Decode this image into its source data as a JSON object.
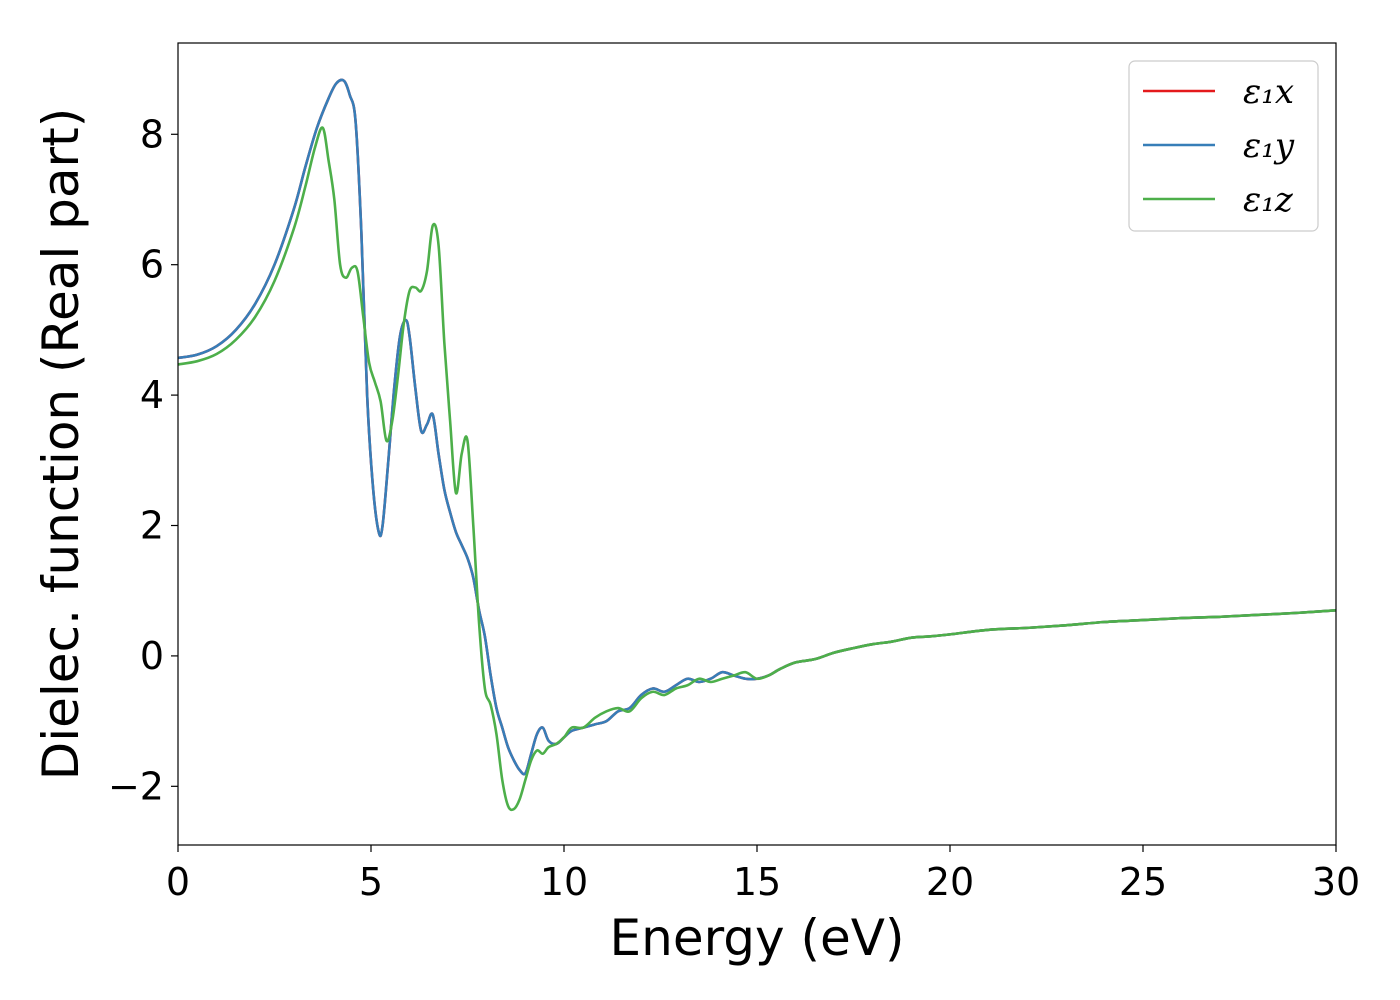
{
  "chart_data": {
    "type": "line",
    "xlabel": "Energy (eV)",
    "ylabel": "Dielec. function (Real part)",
    "xlim": [
      0,
      30
    ],
    "ylim": [
      -2.9,
      9.4
    ],
    "xticks": [
      0,
      5,
      10,
      15,
      20,
      25,
      30
    ],
    "yticks": [
      -2,
      0,
      2,
      4,
      6,
      8
    ],
    "xtick_labels": [
      "0",
      "5",
      "10",
      "15",
      "20",
      "25",
      "30"
    ],
    "ytick_labels": [
      "−2",
      "0",
      "2",
      "4",
      "6",
      "8"
    ],
    "grid": false,
    "legend_position": "top-right",
    "series": [
      {
        "name": "ε₁x",
        "color": "#e41a1c",
        "x": [
          0,
          0.5,
          1,
          1.5,
          2,
          2.5,
          3,
          3.3,
          3.6,
          3.9,
          4.1,
          4.3,
          4.45,
          4.6,
          4.75,
          4.9,
          5.05,
          5.2,
          5.3,
          5.45,
          5.6,
          5.75,
          5.9,
          6.0,
          6.15,
          6.3,
          6.45,
          6.6,
          6.75,
          6.9,
          7.05,
          7.2,
          7.35,
          7.5,
          7.65,
          7.8,
          7.95,
          8.1,
          8.25,
          8.4,
          8.55,
          8.7,
          8.85,
          9.0,
          9.15,
          9.3,
          9.45,
          9.6,
          9.8,
          10.0,
          10.2,
          10.5,
          10.8,
          11.1,
          11.4,
          11.7,
          12.0,
          12.3,
          12.6,
          12.9,
          13.2,
          13.5,
          13.8,
          14.1,
          14.4,
          14.7,
          15.0,
          15.3,
          15.6,
          16.0,
          16.5,
          17.0,
          17.5,
          18.0,
          18.5,
          19.0,
          19.5,
          20.0,
          21.0,
          22.0,
          23.0,
          24.0,
          25.0,
          26.0,
          27.0,
          28.0,
          29.0,
          30.0
        ],
        "y": [
          4.57,
          4.62,
          4.75,
          5.0,
          5.4,
          6.0,
          6.85,
          7.5,
          8.1,
          8.55,
          8.78,
          8.82,
          8.6,
          8.2,
          6.5,
          4.0,
          2.6,
          1.9,
          2.0,
          3.0,
          4.1,
          4.9,
          5.15,
          4.9,
          4.1,
          3.45,
          3.55,
          3.7,
          3.1,
          2.55,
          2.2,
          1.9,
          1.7,
          1.5,
          1.2,
          0.7,
          0.3,
          -0.3,
          -0.8,
          -1.1,
          -1.4,
          -1.6,
          -1.75,
          -1.8,
          -1.5,
          -1.2,
          -1.1,
          -1.3,
          -1.35,
          -1.25,
          -1.15,
          -1.1,
          -1.05,
          -1.0,
          -0.85,
          -0.8,
          -0.6,
          -0.5,
          -0.55,
          -0.45,
          -0.35,
          -0.4,
          -0.35,
          -0.25,
          -0.3,
          -0.35,
          -0.35,
          -0.3,
          -0.2,
          -0.1,
          -0.05,
          0.05,
          0.12,
          0.18,
          0.22,
          0.28,
          0.3,
          0.33,
          0.4,
          0.43,
          0.47,
          0.52,
          0.55,
          0.58,
          0.6,
          0.63,
          0.66,
          0.7
        ]
      },
      {
        "name": "ε₁y",
        "color": "#377eb8",
        "x": [
          0,
          0.5,
          1,
          1.5,
          2,
          2.5,
          3,
          3.3,
          3.6,
          3.9,
          4.1,
          4.3,
          4.45,
          4.6,
          4.75,
          4.9,
          5.05,
          5.2,
          5.3,
          5.45,
          5.6,
          5.75,
          5.9,
          6.0,
          6.15,
          6.3,
          6.45,
          6.6,
          6.75,
          6.9,
          7.05,
          7.2,
          7.35,
          7.5,
          7.65,
          7.8,
          7.95,
          8.1,
          8.25,
          8.4,
          8.55,
          8.7,
          8.85,
          9.0,
          9.15,
          9.3,
          9.45,
          9.6,
          9.8,
          10.0,
          10.2,
          10.5,
          10.8,
          11.1,
          11.4,
          11.7,
          12.0,
          12.3,
          12.6,
          12.9,
          13.2,
          13.5,
          13.8,
          14.1,
          14.4,
          14.7,
          15.0,
          15.3,
          15.6,
          16.0,
          16.5,
          17.0,
          17.5,
          18.0,
          18.5,
          19.0,
          19.5,
          20.0,
          21.0,
          22.0,
          23.0,
          24.0,
          25.0,
          26.0,
          27.0,
          28.0,
          29.0,
          30.0
        ],
        "y": [
          4.57,
          4.62,
          4.75,
          5.0,
          5.4,
          6.0,
          6.85,
          7.5,
          8.1,
          8.55,
          8.78,
          8.82,
          8.6,
          8.2,
          6.5,
          4.0,
          2.6,
          1.9,
          2.0,
          3.0,
          4.1,
          4.9,
          5.15,
          4.9,
          4.1,
          3.45,
          3.55,
          3.7,
          3.1,
          2.55,
          2.2,
          1.9,
          1.7,
          1.5,
          1.2,
          0.7,
          0.3,
          -0.3,
          -0.8,
          -1.1,
          -1.4,
          -1.6,
          -1.75,
          -1.8,
          -1.5,
          -1.2,
          -1.1,
          -1.3,
          -1.35,
          -1.25,
          -1.15,
          -1.1,
          -1.05,
          -1.0,
          -0.85,
          -0.8,
          -0.6,
          -0.5,
          -0.55,
          -0.45,
          -0.35,
          -0.4,
          -0.35,
          -0.25,
          -0.3,
          -0.35,
          -0.35,
          -0.3,
          -0.2,
          -0.1,
          -0.05,
          0.05,
          0.12,
          0.18,
          0.22,
          0.28,
          0.3,
          0.33,
          0.4,
          0.43,
          0.47,
          0.52,
          0.55,
          0.58,
          0.6,
          0.63,
          0.66,
          0.7
        ]
      },
      {
        "name": "ε₁z",
        "color": "#4daf4a",
        "x": [
          0,
          0.5,
          1,
          1.5,
          2,
          2.5,
          3,
          3.3,
          3.55,
          3.75,
          3.9,
          4.05,
          4.2,
          4.35,
          4.5,
          4.65,
          4.8,
          4.95,
          5.1,
          5.25,
          5.4,
          5.55,
          5.7,
          5.85,
          6.0,
          6.15,
          6.3,
          6.45,
          6.6,
          6.75,
          6.9,
          7.05,
          7.2,
          7.35,
          7.5,
          7.65,
          7.8,
          7.95,
          8.1,
          8.25,
          8.4,
          8.55,
          8.7,
          8.85,
          9.0,
          9.15,
          9.3,
          9.45,
          9.6,
          9.8,
          10.0,
          10.2,
          10.5,
          10.8,
          11.1,
          11.4,
          11.7,
          12.0,
          12.3,
          12.6,
          12.9,
          13.2,
          13.5,
          13.8,
          14.1,
          14.4,
          14.7,
          15.0,
          15.3,
          15.6,
          16.0,
          16.5,
          17.0,
          17.5,
          18.0,
          18.5,
          19.0,
          19.5,
          20.0,
          21.0,
          22.0,
          23.0,
          24.0,
          25.0,
          26.0,
          27.0,
          28.0,
          29.0,
          30.0
        ],
        "y": [
          4.47,
          4.52,
          4.63,
          4.85,
          5.2,
          5.75,
          6.55,
          7.2,
          7.8,
          8.1,
          7.6,
          7.0,
          6.0,
          5.8,
          5.95,
          5.9,
          5.2,
          4.5,
          4.2,
          3.9,
          3.3,
          3.6,
          4.3,
          5.1,
          5.6,
          5.65,
          5.6,
          5.9,
          6.6,
          6.3,
          4.8,
          3.6,
          2.5,
          3.1,
          3.3,
          2.0,
          0.5,
          -0.5,
          -0.75,
          -1.2,
          -1.9,
          -2.3,
          -2.35,
          -2.2,
          -1.9,
          -1.6,
          -1.45,
          -1.5,
          -1.4,
          -1.35,
          -1.25,
          -1.1,
          -1.1,
          -0.95,
          -0.85,
          -0.8,
          -0.85,
          -0.65,
          -0.55,
          -0.6,
          -0.5,
          -0.45,
          -0.35,
          -0.4,
          -0.35,
          -0.3,
          -0.25,
          -0.35,
          -0.3,
          -0.2,
          -0.1,
          -0.05,
          0.05,
          0.12,
          0.18,
          0.22,
          0.28,
          0.3,
          0.33,
          0.4,
          0.43,
          0.47,
          0.52,
          0.55,
          0.58,
          0.6,
          0.63,
          0.66,
          0.7
        ]
      }
    ]
  }
}
